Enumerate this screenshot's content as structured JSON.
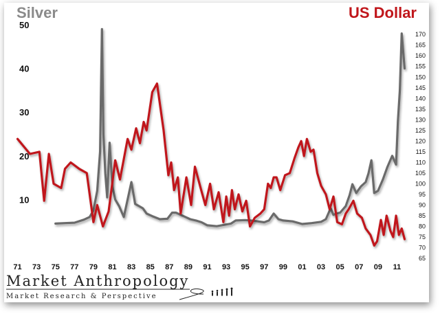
{
  "chart_data": {
    "type": "line",
    "left_title": "Silver",
    "right_title": "US Dollar",
    "left_ylabel_ticks": [
      "10",
      "20",
      "30",
      "40",
      "50"
    ],
    "left_ylim": [
      0,
      50
    ],
    "right_ylabel_ticks": [
      "65",
      "70",
      "75",
      "80",
      "85",
      "90",
      "95",
      "100",
      "105",
      "110",
      "115",
      "120",
      "125",
      "130",
      "135",
      "140",
      "145",
      "150",
      "155",
      "160",
      "165",
      "170"
    ],
    "right_ylim": [
      65,
      172
    ],
    "x_ticks": [
      "71",
      "73",
      "75",
      "77",
      "79",
      "81",
      "83",
      "85",
      "87",
      "89",
      "91",
      "93",
      "95",
      "97",
      "99",
      "01",
      "03",
      "05",
      "07",
      "09",
      "11"
    ],
    "xlim": [
      1970.6,
      2012.2
    ],
    "grid": false,
    "series": [
      {
        "name": "US Dollar",
        "color": "#c0161b",
        "axis": "right",
        "x": [
          1971.0,
          1972.3,
          1973.3,
          1973.8,
          1974.3,
          1974.8,
          1975.6,
          1976.0,
          1976.6,
          1977.5,
          1978.3,
          1979.0,
          1979.4,
          1980.0,
          1980.6,
          1981.3,
          1981.8,
          1982.6,
          1983.0,
          1983.5,
          1983.9,
          1984.3,
          1984.6,
          1985.2,
          1985.7,
          1986.4,
          1986.9,
          1987.2,
          1987.5,
          1987.9,
          1988.2,
          1988.8,
          1989.3,
          1989.7,
          1990.3,
          1990.8,
          1991.3,
          1991.7,
          1992.2,
          1992.7,
          1993.0,
          1993.3,
          1993.6,
          1993.9,
          1994.3,
          1994.7,
          1995.1,
          1995.5,
          1996.0,
          1996.6,
          1997.0,
          1997.4,
          1997.7,
          1998.0,
          1998.3,
          1998.7,
          1999.2,
          1999.7,
          2000.2,
          2000.6,
          2000.9,
          2001.2,
          2001.5,
          2001.9,
          2002.2,
          2002.6,
          2003.0,
          2003.5,
          2003.9,
          2004.3,
          2004.7,
          2005.2,
          2005.6,
          2005.9,
          2006.4,
          2006.8,
          2007.3,
          2007.7,
          2008.2,
          2008.6,
          2008.9,
          2009.3,
          2009.6,
          2009.9,
          2010.3,
          2010.6,
          2010.9,
          2011.2,
          2011.5,
          2011.8
        ],
        "values": [
          121,
          114,
          115,
          92,
          114,
          100,
          98,
          107,
          110,
          107,
          105,
          82,
          90,
          80,
          87,
          111,
          102,
          121,
          116,
          126,
          119,
          129,
          125,
          143,
          147,
          125,
          104,
          110,
          97,
          103,
          86,
          103,
          90,
          108,
          98,
          90,
          100,
          88,
          96,
          82,
          94,
          85,
          97,
          88,
          95,
          87,
          92,
          80,
          84,
          86,
          88,
          100,
          98,
          103,
          103,
          97,
          104,
          105,
          112,
          117,
          120,
          113,
          121,
          115,
          116,
          105,
          99,
          95,
          88,
          94,
          82,
          81,
          86,
          88,
          92,
          86,
          84,
          79,
          76,
          71,
          73,
          83,
          76,
          85,
          78,
          75,
          85,
          76,
          79,
          74
        ]
      },
      {
        "name": "Silver",
        "color": "#6b6b6b",
        "axis": "left",
        "x": [
          1975.0,
          1976.0,
          1977.0,
          1978.0,
          1978.6,
          1979.0,
          1979.4,
          1979.7,
          1979.9,
          1980.05,
          1980.25,
          1980.45,
          1980.7,
          1981.0,
          1981.3,
          1981.7,
          1982.2,
          1982.7,
          1983.0,
          1983.4,
          1983.8,
          1984.2,
          1984.6,
          1985.2,
          1986.0,
          1986.8,
          1987.3,
          1987.7,
          1988.2,
          1988.7,
          1989.2,
          1989.8,
          1990.4,
          1991.0,
          1992.0,
          1993.0,
          1993.5,
          1994.0,
          1995.0,
          1995.5,
          1996.0,
          1997.0,
          1997.5,
          1998.0,
          1998.5,
          1999.0,
          2000.0,
          2001.0,
          2002.0,
          2003.0,
          2003.5,
          2004.0,
          2004.3,
          2004.6,
          2005.0,
          2005.6,
          2006.0,
          2006.3,
          2006.7,
          2007.2,
          2007.7,
          2008.0,
          2008.3,
          2008.6,
          2009.0,
          2009.5,
          2010.0,
          2010.5,
          2010.9,
          2011.1,
          2011.3,
          2011.5,
          2011.8
        ],
        "values": [
          4.5,
          4.6,
          4.7,
          5.4,
          6.0,
          7.5,
          12.0,
          21.0,
          49.0,
          25.0,
          16.0,
          10.5,
          23.0,
          13.0,
          10.0,
          8.5,
          6.0,
          11.0,
          14.0,
          9.0,
          8.5,
          8.0,
          6.8,
          6.2,
          5.5,
          5.6,
          7.0,
          7.0,
          6.5,
          6.0,
          5.5,
          5.2,
          4.8,
          4.1,
          3.9,
          4.3,
          4.5,
          5.2,
          5.3,
          5.2,
          5.1,
          4.8,
          5.2,
          6.8,
          5.5,
          5.2,
          5.0,
          4.4,
          4.6,
          4.9,
          5.5,
          8.0,
          6.5,
          6.8,
          7.0,
          8.5,
          11.0,
          13.5,
          11.5,
          13.0,
          14.0,
          16.0,
          19.0,
          11.5,
          12.0,
          14.5,
          17.5,
          20.0,
          18.0,
          28.0,
          35.0,
          48.0,
          40.0
        ]
      }
    ]
  },
  "logo": {
    "main": "Market Anthropology",
    "sub": "Market Research & Perspective"
  }
}
